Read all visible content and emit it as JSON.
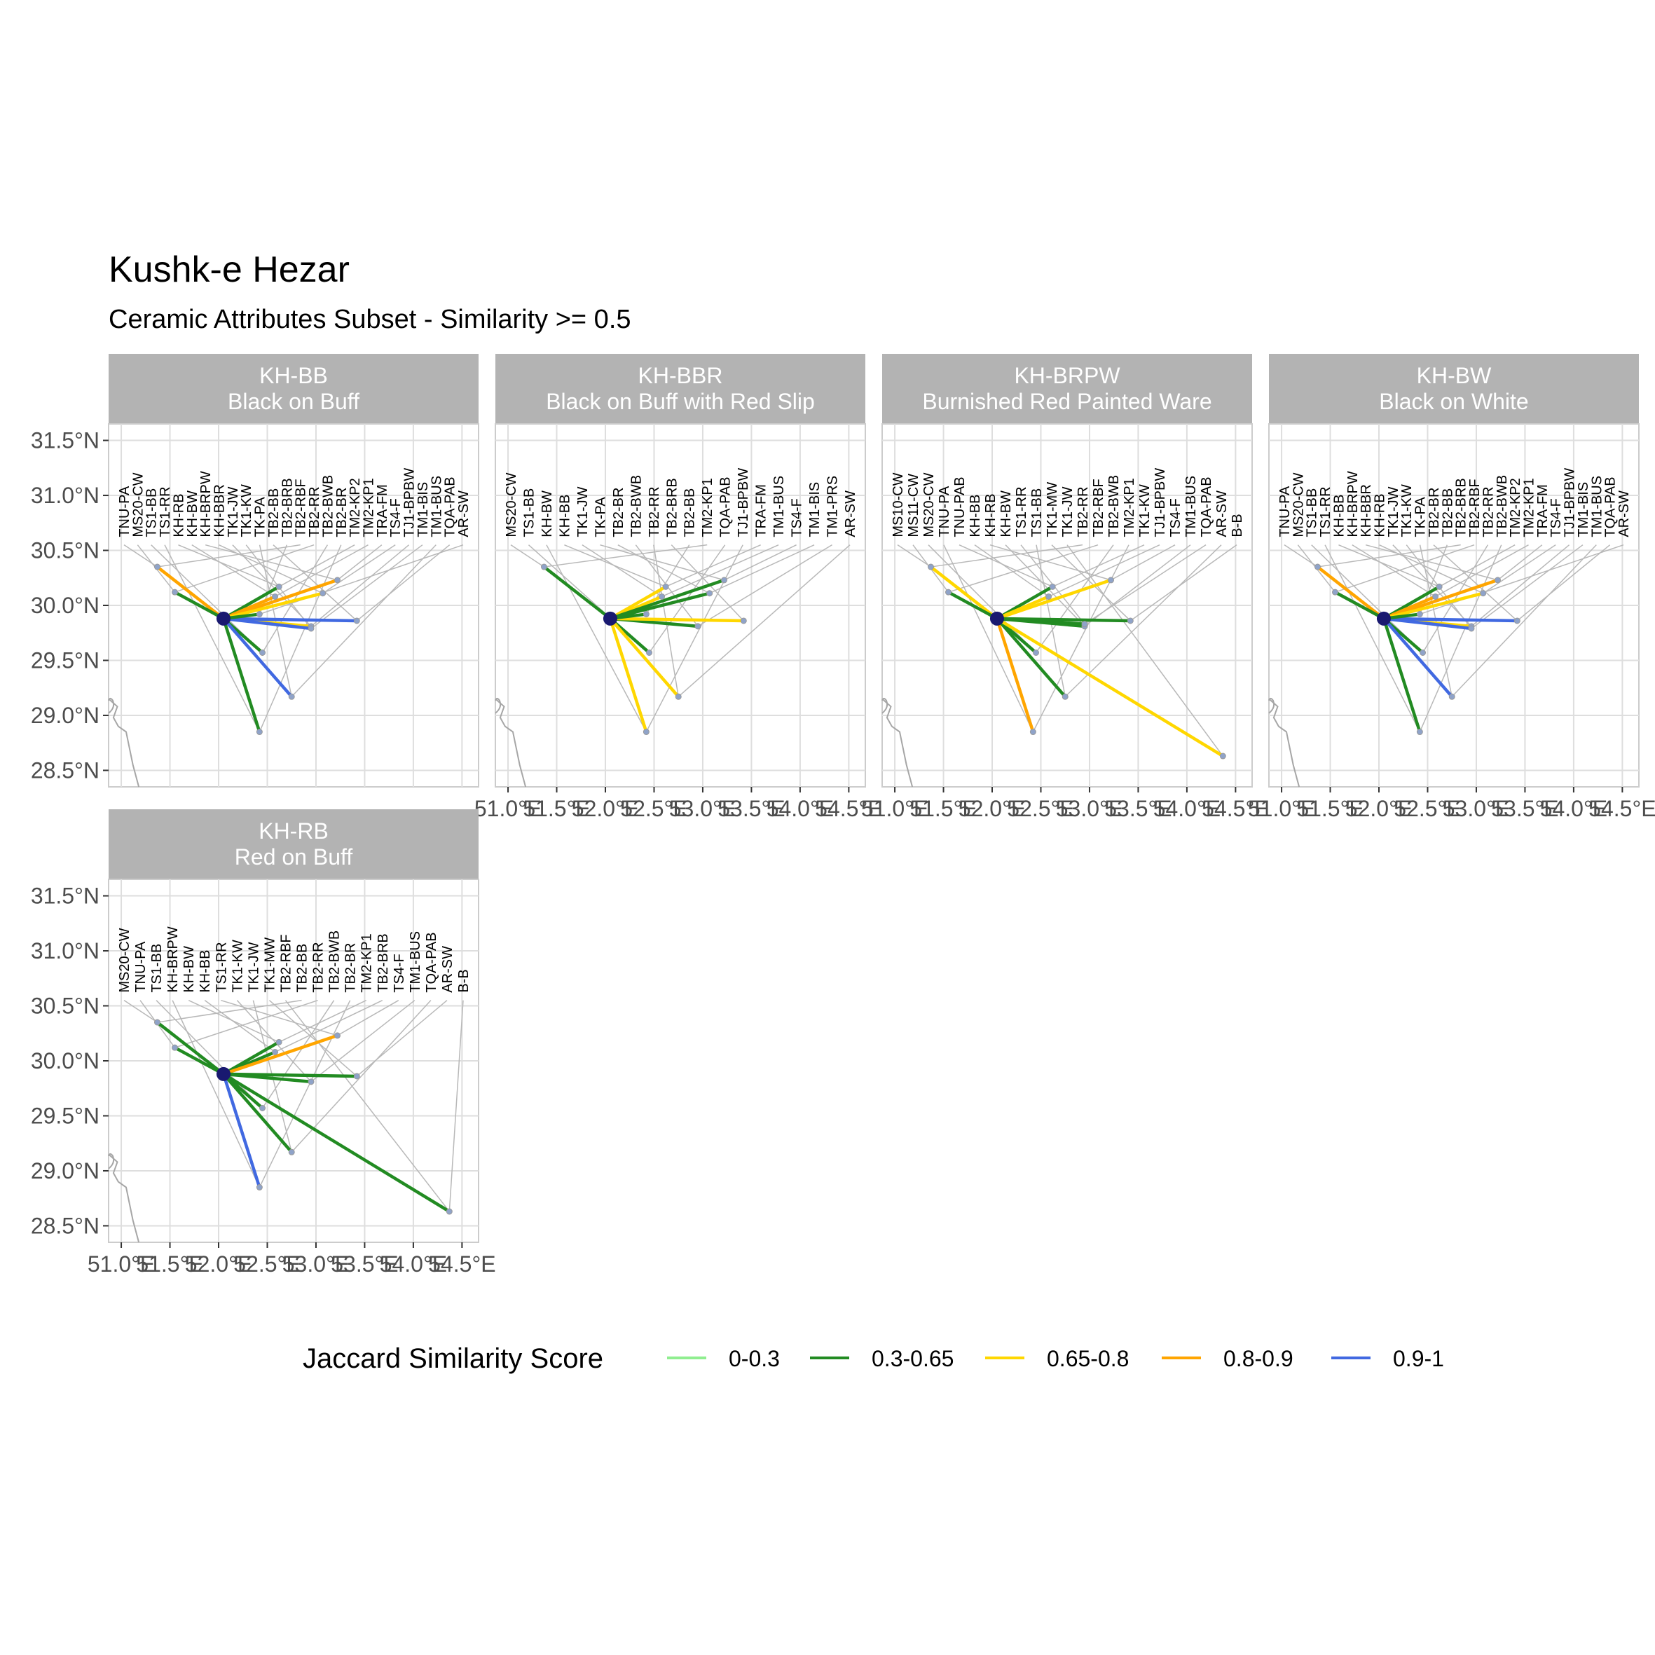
{
  "title": "Kushk-e Hezar",
  "subtitle": "Ceramic Attributes Subset - Similarity >= 0.5",
  "colors": {
    "0-0.3": "#90ee90",
    "0.3-0.65": "#228b22",
    "0.65-0.8": "#ffd700",
    "0.8-0.9": "#ffa500",
    "0.9-1": "#4169e1",
    "strip": "#b3b3b3",
    "grid": "#dedede",
    "leader": "#b8b8b8",
    "coast": "#a6a6a6",
    "origin": "#191970"
  },
  "chart_data": {
    "type": "map",
    "xlim": [
      50.87,
      54.67
    ],
    "ylim": [
      28.35,
      31.65
    ],
    "x_ticks": [
      51.0,
      51.5,
      52.0,
      52.5,
      53.0,
      53.5,
      54.0,
      54.5
    ],
    "x_tick_labels": [
      "51.0°E",
      "51.5°E",
      "52.0°E",
      "52.5°E",
      "53.0°E",
      "53.5°E",
      "54.0°E",
      "54.5°E"
    ],
    "y_ticks": [
      28.5,
      29.0,
      29.5,
      30.0,
      30.5,
      31.0,
      31.5
    ],
    "y_tick_labels": [
      "28.5°N",
      "29.0°N",
      "29.5°N",
      "30.0°N",
      "30.5°N",
      "31.0°N",
      "31.5°N"
    ],
    "origin": {
      "lon": 52.05,
      "lat": 29.88
    },
    "legend": {
      "title": "Jaccard Similarity Score",
      "entries": [
        "0-0.3",
        "0.3-0.65",
        "0.65-0.8",
        "0.8-0.9",
        "0.9-1"
      ],
      "position": "bottom"
    },
    "facets": [
      {
        "strip": [
          "KH-BB",
          "Black on Buff"
        ],
        "labels": [
          "TNU-PA",
          "MS20-CW",
          "TS1-BB",
          "TS1-RR",
          "KH-RB",
          "KH-BW",
          "KH-BRPW",
          "KH-BBR",
          "TK1-JW",
          "TK1-KW",
          "TK-PA",
          "TB2-BB",
          "TB2-BRB",
          "TB2-RBF",
          "TB2-RR",
          "TB2-BWB",
          "TB2-BR",
          "TM2-KP2",
          "TM2-KP1",
          "TRA-FM",
          "TS4-F",
          "TJ1-BPBW",
          "TM1-BIS",
          "TM1-BUS",
          "TQA-PAB",
          "AR-SW"
        ],
        "edges": [
          {
            "lon": 51.37,
            "lat": 30.35,
            "cls": "0.8-0.9"
          },
          {
            "lon": 51.55,
            "lat": 30.12,
            "cls": "0.3-0.65"
          },
          {
            "lon": 52.45,
            "lat": 29.57,
            "cls": "0.3-0.65"
          },
          {
            "lon": 52.42,
            "lat": 28.85,
            "cls": "0.3-0.65"
          },
          {
            "lon": 52.62,
            "lat": 30.17,
            "cls": "0.3-0.65"
          },
          {
            "lon": 52.58,
            "lat": 30.08,
            "cls": "0.8-0.9"
          },
          {
            "lon": 53.22,
            "lat": 30.23,
            "cls": "0.8-0.9"
          },
          {
            "lon": 53.07,
            "lat": 30.11,
            "cls": "0.65-0.8"
          },
          {
            "lon": 52.95,
            "lat": 29.81,
            "cls": "0.65-0.8"
          },
          {
            "lon": 52.95,
            "lat": 29.79,
            "cls": "0.9-1"
          },
          {
            "lon": 52.75,
            "lat": 29.17,
            "cls": "0.9-1"
          },
          {
            "lon": 53.42,
            "lat": 29.86,
            "cls": "0.9-1"
          },
          {
            "lon": 52.42,
            "lat": 29.92,
            "cls": "0.3-0.65"
          }
        ]
      },
      {
        "strip": [
          "KH-BBR",
          "Black on Buff with Red Slip"
        ],
        "labels": [
          "MS20-CW",
          "TS1-BB",
          "KH-BW",
          "KH-BB",
          "TK1-JW",
          "TK-PA",
          "TB2-BR",
          "TB2-BWB",
          "TB2-RR",
          "TB2-BRB",
          "TB2-BB",
          "TM2-KP1",
          "TQA-PAB",
          "TJ1-BPBW",
          "TRA-FM",
          "TM1-BUS",
          "TS4-F",
          "TM1-BIS",
          "TM1-PRS",
          "AR-SW"
        ],
        "edges": [
          {
            "lon": 51.37,
            "lat": 30.35,
            "cls": "0.3-0.65"
          },
          {
            "lon": 52.45,
            "lat": 29.57,
            "cls": "0.3-0.65"
          },
          {
            "lon": 52.42,
            "lat": 28.85,
            "cls": "0.65-0.8"
          },
          {
            "lon": 52.62,
            "lat": 30.17,
            "cls": "0.65-0.8"
          },
          {
            "lon": 52.58,
            "lat": 30.08,
            "cls": "0.65-0.8"
          },
          {
            "lon": 53.22,
            "lat": 30.23,
            "cls": "0.3-0.65"
          },
          {
            "lon": 53.07,
            "lat": 30.11,
            "cls": "0.3-0.65"
          },
          {
            "lon": 52.95,
            "lat": 29.81,
            "cls": "0.3-0.65"
          },
          {
            "lon": 52.75,
            "lat": 29.17,
            "cls": "0.65-0.8"
          },
          {
            "lon": 53.42,
            "lat": 29.86,
            "cls": "0.65-0.8"
          },
          {
            "lon": 52.42,
            "lat": 29.92,
            "cls": "0.3-0.65"
          }
        ]
      },
      {
        "strip": [
          "KH-BRPW",
          "Burnished Red Painted Ware"
        ],
        "labels": [
          "MS10-CW",
          "MS11-CW",
          "MS20-CW",
          "TNU-PA",
          "TNU-PAB",
          "KH-BB",
          "KH-RB",
          "KH-BW",
          "TS1-RR",
          "TS1-BB",
          "TK1-MW",
          "TK1-JW",
          "TB2-RR",
          "TB2-RBF",
          "TB2-BWB",
          "TM2-KP1",
          "TK1-KW",
          "TJ1-BPBW",
          "TS4-F",
          "TM1-BUS",
          "TQA-PAB",
          "AR-SW",
          "B-B"
        ],
        "edges": [
          {
            "lon": 51.37,
            "lat": 30.35,
            "cls": "0.65-0.8"
          },
          {
            "lon": 51.55,
            "lat": 30.12,
            "cls": "0.3-0.65"
          },
          {
            "lon": 52.45,
            "lat": 29.57,
            "cls": "0.3-0.65"
          },
          {
            "lon": 52.42,
            "lat": 28.85,
            "cls": "0.8-0.9"
          },
          {
            "lon": 52.62,
            "lat": 30.17,
            "cls": "0.3-0.65"
          },
          {
            "lon": 52.58,
            "lat": 30.08,
            "cls": "0.65-0.8"
          },
          {
            "lon": 53.22,
            "lat": 30.23,
            "cls": "0.65-0.8"
          },
          {
            "lon": 52.95,
            "lat": 29.81,
            "cls": "0.3-0.65"
          },
          {
            "lon": 52.95,
            "lat": 29.83,
            "cls": "0.3-0.65"
          },
          {
            "lon": 52.75,
            "lat": 29.17,
            "cls": "0.3-0.65"
          },
          {
            "lon": 53.42,
            "lat": 29.86,
            "cls": "0.3-0.65"
          },
          {
            "lon": 54.37,
            "lat": 28.63,
            "cls": "0.65-0.8"
          }
        ]
      },
      {
        "strip": [
          "KH-BW",
          "Black on White"
        ],
        "labels": [
          "TNU-PA",
          "MS20-CW",
          "TS1-BB",
          "TS1-RR",
          "KH-BB",
          "KH-BRPW",
          "KH-BBR",
          "KH-RB",
          "TK1-JW",
          "TK1-KW",
          "TK-PA",
          "TB2-BR",
          "TB2-BB",
          "TB2-BRB",
          "TB2-RBF",
          "TB2-RR",
          "TB2-BWB",
          "TM2-KP2",
          "TM2-KP1",
          "TRA-FM",
          "TS4-F",
          "TJ1-BPBW",
          "TM1-BIS",
          "TM1-BUS",
          "TQA-PAB",
          "AR-SW"
        ],
        "edges": [
          {
            "lon": 51.37,
            "lat": 30.35,
            "cls": "0.8-0.9"
          },
          {
            "lon": 51.55,
            "lat": 30.12,
            "cls": "0.3-0.65"
          },
          {
            "lon": 52.45,
            "lat": 29.57,
            "cls": "0.3-0.65"
          },
          {
            "lon": 52.42,
            "lat": 28.85,
            "cls": "0.3-0.65"
          },
          {
            "lon": 52.62,
            "lat": 30.17,
            "cls": "0.3-0.65"
          },
          {
            "lon": 52.58,
            "lat": 30.08,
            "cls": "0.8-0.9"
          },
          {
            "lon": 53.22,
            "lat": 30.23,
            "cls": "0.8-0.9"
          },
          {
            "lon": 53.07,
            "lat": 30.11,
            "cls": "0.65-0.8"
          },
          {
            "lon": 52.95,
            "lat": 29.81,
            "cls": "0.65-0.8"
          },
          {
            "lon": 52.95,
            "lat": 29.79,
            "cls": "0.9-1"
          },
          {
            "lon": 52.75,
            "lat": 29.17,
            "cls": "0.9-1"
          },
          {
            "lon": 53.42,
            "lat": 29.86,
            "cls": "0.9-1"
          },
          {
            "lon": 52.42,
            "lat": 29.92,
            "cls": "0.3-0.65"
          }
        ]
      },
      {
        "strip": [
          "KH-RB",
          "Red on Buff"
        ],
        "labels": [
          "MS20-CW",
          "TNU-PA",
          "TS1-BB",
          "KH-BRPW",
          "KH-BW",
          "KH-BB",
          "TS1-RR",
          "TK1-KW",
          "TK1-JW",
          "TK1-MW",
          "TB2-RBF",
          "TB2-BB",
          "TB2-RR",
          "TB2-BWB",
          "TB2-BR",
          "TM2-KP1",
          "TB2-BRB",
          "TS4-F",
          "TM1-BUS",
          "TQA-PAB",
          "AR-SW",
          "B-B"
        ],
        "edges": [
          {
            "lon": 51.37,
            "lat": 30.35,
            "cls": "0.3-0.65"
          },
          {
            "lon": 51.55,
            "lat": 30.12,
            "cls": "0.3-0.65"
          },
          {
            "lon": 52.45,
            "lat": 29.57,
            "cls": "0.3-0.65"
          },
          {
            "lon": 52.42,
            "lat": 28.85,
            "cls": "0.9-1"
          },
          {
            "lon": 52.62,
            "lat": 30.17,
            "cls": "0.3-0.65"
          },
          {
            "lon": 52.58,
            "lat": 30.08,
            "cls": "0.3-0.65"
          },
          {
            "lon": 53.22,
            "lat": 30.23,
            "cls": "0.8-0.9"
          },
          {
            "lon": 52.95,
            "lat": 29.81,
            "cls": "0.3-0.65"
          },
          {
            "lon": 52.75,
            "lat": 29.17,
            "cls": "0.3-0.65"
          },
          {
            "lon": 53.42,
            "lat": 29.86,
            "cls": "0.3-0.65"
          },
          {
            "lon": 54.37,
            "lat": 28.63,
            "cls": "0.3-0.65"
          }
        ]
      }
    ]
  }
}
